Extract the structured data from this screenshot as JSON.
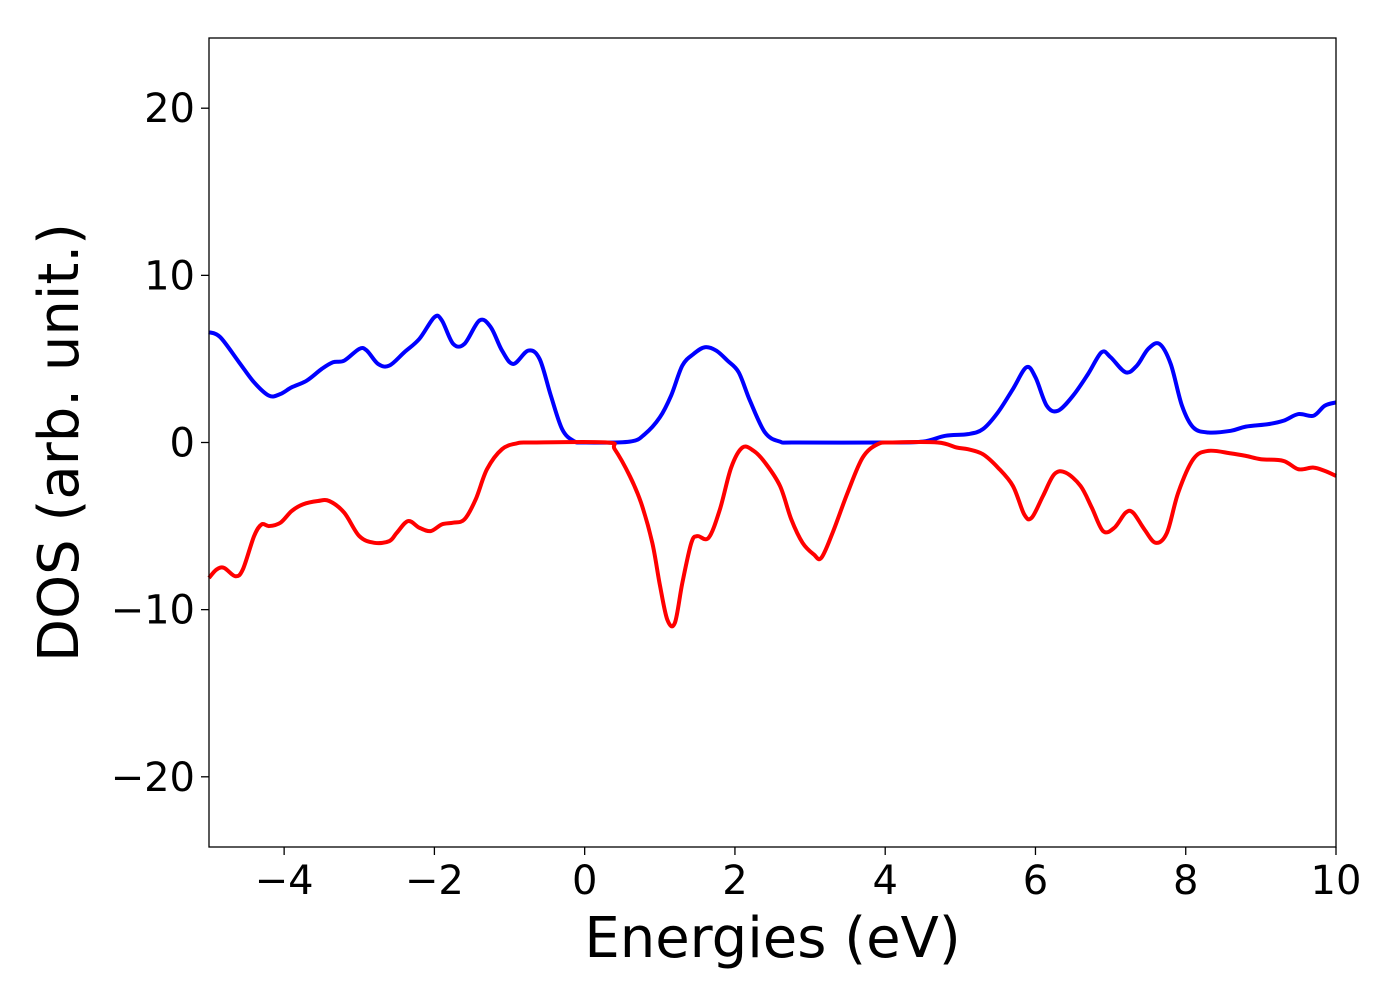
{
  "chart_data": {
    "type": "line",
    "title": "",
    "xlabel": "Energies (eV)",
    "ylabel": "DOS (arb. unit.)",
    "xlim": [
      -5,
      10
    ],
    "ylim": [
      -24.2,
      24.2
    ],
    "xticks": [
      -4,
      -2,
      0,
      2,
      4,
      6,
      8,
      10
    ],
    "xtick_labels": [
      "−4",
      "−2",
      "0",
      "2",
      "4",
      "6",
      "8",
      "10"
    ],
    "yticks": [
      -20,
      -10,
      0,
      10,
      20
    ],
    "ytick_labels": [
      "−20",
      "−10",
      "0",
      "10",
      "20"
    ],
    "grid": false,
    "legend": "none",
    "series": [
      {
        "color": "#0000ff",
        "points": [
          [
            -5.0,
            6.6
          ],
          [
            -4.85,
            6.3
          ],
          [
            -4.6,
            4.8
          ],
          [
            -4.4,
            3.6
          ],
          [
            -4.2,
            2.8
          ],
          [
            -4.05,
            2.9
          ],
          [
            -3.9,
            3.3
          ],
          [
            -3.7,
            3.7
          ],
          [
            -3.5,
            4.4
          ],
          [
            -3.35,
            4.8
          ],
          [
            -3.2,
            4.9
          ],
          [
            -3.0,
            5.6
          ],
          [
            -2.9,
            5.5
          ],
          [
            -2.75,
            4.7
          ],
          [
            -2.6,
            4.6
          ],
          [
            -2.4,
            5.4
          ],
          [
            -2.2,
            6.2
          ],
          [
            -2.0,
            7.5
          ],
          [
            -1.9,
            7.3
          ],
          [
            -1.75,
            5.9
          ],
          [
            -1.6,
            5.9
          ],
          [
            -1.4,
            7.3
          ],
          [
            -1.25,
            6.9
          ],
          [
            -1.1,
            5.5
          ],
          [
            -0.95,
            4.7
          ],
          [
            -0.75,
            5.5
          ],
          [
            -0.6,
            5.0
          ],
          [
            -0.45,
            2.8
          ],
          [
            -0.3,
            0.8
          ],
          [
            -0.15,
            0.1
          ],
          [
            0.0,
            0.0
          ],
          [
            0.6,
            0.05
          ],
          [
            0.8,
            0.5
          ],
          [
            1.0,
            1.5
          ],
          [
            1.15,
            2.8
          ],
          [
            1.3,
            4.6
          ],
          [
            1.45,
            5.3
          ],
          [
            1.6,
            5.7
          ],
          [
            1.75,
            5.5
          ],
          [
            1.9,
            4.9
          ],
          [
            2.05,
            4.2
          ],
          [
            2.2,
            2.5
          ],
          [
            2.4,
            0.6
          ],
          [
            2.6,
            0.05
          ],
          [
            2.8,
            0.0
          ],
          [
            4.0,
            0.0
          ],
          [
            4.5,
            0.05
          ],
          [
            4.8,
            0.4
          ],
          [
            5.1,
            0.5
          ],
          [
            5.3,
            0.8
          ],
          [
            5.5,
            1.8
          ],
          [
            5.7,
            3.2
          ],
          [
            5.88,
            4.5
          ],
          [
            6.0,
            3.9
          ],
          [
            6.15,
            2.2
          ],
          [
            6.3,
            1.9
          ],
          [
            6.5,
            2.8
          ],
          [
            6.7,
            4.1
          ],
          [
            6.88,
            5.4
          ],
          [
            7.0,
            5.1
          ],
          [
            7.2,
            4.2
          ],
          [
            7.35,
            4.6
          ],
          [
            7.5,
            5.6
          ],
          [
            7.65,
            5.9
          ],
          [
            7.8,
            4.7
          ],
          [
            7.95,
            2.2
          ],
          [
            8.1,
            0.9
          ],
          [
            8.3,
            0.6
          ],
          [
            8.6,
            0.7
          ],
          [
            8.8,
            0.95
          ],
          [
            9.1,
            1.1
          ],
          [
            9.3,
            1.3
          ],
          [
            9.5,
            1.7
          ],
          [
            9.7,
            1.6
          ],
          [
            9.85,
            2.2
          ],
          [
            10.0,
            2.4
          ]
        ]
      },
      {
        "color": "#ff0000",
        "points": [
          [
            -5.0,
            -8.1
          ],
          [
            -4.9,
            -7.6
          ],
          [
            -4.8,
            -7.5
          ],
          [
            -4.65,
            -8.0
          ],
          [
            -4.55,
            -7.6
          ],
          [
            -4.4,
            -5.6
          ],
          [
            -4.3,
            -4.9
          ],
          [
            -4.2,
            -5.0
          ],
          [
            -4.05,
            -4.8
          ],
          [
            -3.9,
            -4.1
          ],
          [
            -3.75,
            -3.7
          ],
          [
            -3.55,
            -3.5
          ],
          [
            -3.4,
            -3.5
          ],
          [
            -3.2,
            -4.2
          ],
          [
            -3.0,
            -5.6
          ],
          [
            -2.8,
            -6.0
          ],
          [
            -2.6,
            -5.9
          ],
          [
            -2.5,
            -5.4
          ],
          [
            -2.35,
            -4.7
          ],
          [
            -2.2,
            -5.1
          ],
          [
            -2.05,
            -5.3
          ],
          [
            -1.9,
            -4.9
          ],
          [
            -1.75,
            -4.8
          ],
          [
            -1.6,
            -4.6
          ],
          [
            -1.45,
            -3.4
          ],
          [
            -1.3,
            -1.6
          ],
          [
            -1.1,
            -0.4
          ],
          [
            -0.9,
            -0.05
          ],
          [
            -0.7,
            0.0
          ],
          [
            0.3,
            0.0
          ],
          [
            0.4,
            -0.4
          ],
          [
            0.6,
            -2.0
          ],
          [
            0.75,
            -3.6
          ],
          [
            0.9,
            -6.0
          ],
          [
            1.0,
            -8.5
          ],
          [
            1.1,
            -10.6
          ],
          [
            1.2,
            -10.8
          ],
          [
            1.3,
            -8.4
          ],
          [
            1.42,
            -6.0
          ],
          [
            1.5,
            -5.6
          ],
          [
            1.65,
            -5.7
          ],
          [
            1.8,
            -4.0
          ],
          [
            1.95,
            -1.5
          ],
          [
            2.1,
            -0.3
          ],
          [
            2.25,
            -0.5
          ],
          [
            2.4,
            -1.2
          ],
          [
            2.6,
            -2.6
          ],
          [
            2.75,
            -4.6
          ],
          [
            2.9,
            -6.0
          ],
          [
            3.05,
            -6.7
          ],
          [
            3.15,
            -6.9
          ],
          [
            3.3,
            -5.4
          ],
          [
            3.5,
            -3.0
          ],
          [
            3.7,
            -0.9
          ],
          [
            3.9,
            -0.1
          ],
          [
            4.1,
            0.0
          ],
          [
            4.7,
            0.0
          ],
          [
            4.95,
            -0.3
          ],
          [
            5.1,
            -0.4
          ],
          [
            5.3,
            -0.7
          ],
          [
            5.5,
            -1.5
          ],
          [
            5.7,
            -2.6
          ],
          [
            5.85,
            -4.3
          ],
          [
            5.95,
            -4.5
          ],
          [
            6.1,
            -3.2
          ],
          [
            6.25,
            -1.9
          ],
          [
            6.4,
            -1.8
          ],
          [
            6.6,
            -2.6
          ],
          [
            6.75,
            -3.9
          ],
          [
            6.9,
            -5.3
          ],
          [
            7.05,
            -5.1
          ],
          [
            7.2,
            -4.2
          ],
          [
            7.3,
            -4.2
          ],
          [
            7.45,
            -5.2
          ],
          [
            7.6,
            -6.0
          ],
          [
            7.75,
            -5.4
          ],
          [
            7.9,
            -3.0
          ],
          [
            8.1,
            -1.0
          ],
          [
            8.3,
            -0.5
          ],
          [
            8.6,
            -0.65
          ],
          [
            8.8,
            -0.8
          ],
          [
            9.0,
            -1.0
          ],
          [
            9.3,
            -1.1
          ],
          [
            9.5,
            -1.6
          ],
          [
            9.7,
            -1.5
          ],
          [
            9.85,
            -1.7
          ],
          [
            10.0,
            -2.0
          ]
        ]
      }
    ]
  }
}
